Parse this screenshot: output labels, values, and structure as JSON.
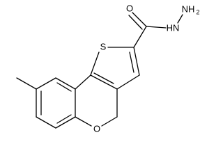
{
  "labels": {
    "sulfur": "S",
    "carbonyl_oxygen": "O",
    "ring_oxygen": "O",
    "amide_nitrogen": "HN",
    "amine_nitrogen": "NH",
    "amine_subscript": "2"
  }
}
